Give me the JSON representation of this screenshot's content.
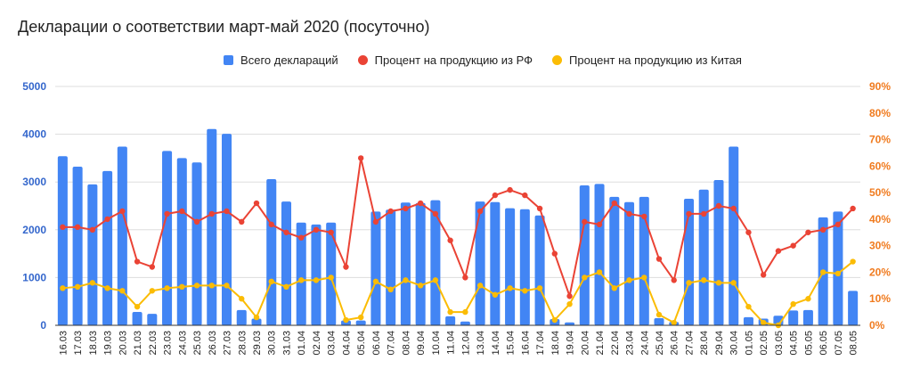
{
  "chart_data": {
    "type": "bar+line",
    "title": "Декларации о соответствии март-май 2020 (посуточно)",
    "xlabel": "",
    "ylabel_left": "",
    "ylabel_right": "",
    "ylim_left": [
      0,
      5000
    ],
    "ylim_right": [
      0,
      90
    ],
    "left_ticks": [
      "0",
      "1000",
      "2000",
      "3000",
      "4000",
      "5000"
    ],
    "right_ticks": [
      "0%",
      "10%",
      "20%",
      "30%",
      "40%",
      "50%",
      "60%",
      "70%",
      "80%",
      "90%"
    ],
    "grid": true,
    "legend_position": "top",
    "categories": [
      "16.03",
      "17.03",
      "18.03",
      "19.03",
      "20.03",
      "21.03",
      "22.03",
      "23.03",
      "24.03",
      "25.03",
      "26.03",
      "27.03",
      "28.03",
      "29.03",
      "30.03",
      "31.03",
      "01.04",
      "02.04",
      "03.04",
      "04.04",
      "05.04",
      "06.04",
      "07.04",
      "08.04",
      "09.04",
      "10.04",
      "11.04",
      "12.04",
      "13.04",
      "14.04",
      "15.04",
      "16.04",
      "17.04",
      "18.04",
      "19.04",
      "20.04",
      "21.04",
      "22.04",
      "23.04",
      "24.04",
      "25.04",
      "26.04",
      "27.04",
      "28.04",
      "29.04",
      "30.04",
      "01.05",
      "02.05",
      "03.05",
      "04.05",
      "05.05",
      "06.05",
      "07.05",
      "08.05"
    ],
    "series": [
      {
        "name": "Всего деклараций",
        "type": "bar",
        "axis": "left",
        "color": "#4285f4",
        "values": [
          3540,
          3320,
          2950,
          3230,
          3740,
          280,
          240,
          3650,
          3500,
          3410,
          4110,
          4010,
          320,
          140,
          3060,
          2590,
          2150,
          2110,
          2150,
          100,
          100,
          2380,
          2420,
          2570,
          2560,
          2620,
          190,
          80,
          2590,
          2580,
          2450,
          2430,
          2300,
          130,
          60,
          2930,
          2960,
          2690,
          2580,
          2690,
          150,
          70,
          2650,
          2840,
          3040,
          3740,
          170,
          140,
          200,
          310,
          320,
          2260,
          2380,
          720
        ]
      },
      {
        "name": "Процент на продукцию из РФ",
        "type": "line",
        "axis": "right",
        "color": "#ea4335",
        "values": [
          37,
          37,
          36,
          40,
          43,
          24,
          22,
          42,
          43,
          39,
          42,
          43,
          39,
          46,
          38,
          35,
          33,
          36,
          35,
          22,
          63,
          39,
          43,
          44,
          46,
          42,
          32,
          18,
          43,
          49,
          51,
          49,
          44,
          27,
          11,
          39,
          38,
          46,
          42,
          41,
          25,
          17,
          42,
          42,
          45,
          44,
          35,
          19,
          28,
          30,
          35,
          36,
          38,
          44
        ]
      },
      {
        "name": "Процент на продукцию из Китая",
        "type": "line",
        "axis": "right",
        "color": "#fbbc04",
        "values": [
          14,
          14.5,
          16,
          14,
          13,
          7,
          13,
          14,
          14.5,
          15,
          15,
          15,
          10,
          3,
          16.5,
          14.5,
          17,
          17,
          18,
          2,
          3,
          16.5,
          13.5,
          17,
          15,
          17,
          5,
          5,
          15,
          11.5,
          14,
          13,
          14,
          2,
          8,
          18,
          20,
          14,
          17,
          18,
          4,
          1,
          16,
          17,
          16,
          16,
          7,
          1,
          0,
          8,
          10,
          20,
          19.5,
          24
        ]
      }
    ]
  }
}
